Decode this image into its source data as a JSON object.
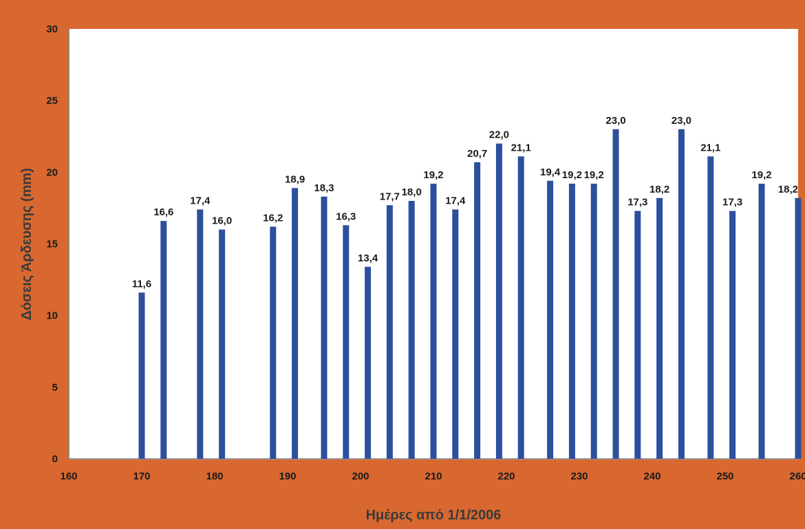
{
  "chart_data": {
    "type": "bar",
    "title": "",
    "xlabel": "Ημέρες από 1/1/2006",
    "ylabel": "Δόσεις Άρδευσης (mm)",
    "xlim": [
      160,
      260
    ],
    "ylim": [
      0,
      30
    ],
    "x_ticks": [
      "160",
      "170",
      "180",
      "190",
      "200",
      "210",
      "220",
      "230",
      "240",
      "250",
      "260"
    ],
    "y_ticks": [
      "0",
      "5",
      "10",
      "15",
      "20",
      "25",
      "30"
    ],
    "grid": false,
    "legend": "none",
    "bar_color": "#2c4f9e",
    "points": [
      {
        "x": 170,
        "y": 11.6,
        "label": "11,6"
      },
      {
        "x": 173,
        "y": 16.6,
        "label": "16,6"
      },
      {
        "x": 178,
        "y": 17.4,
        "label": "17,4"
      },
      {
        "x": 181,
        "y": 16.0,
        "label": "16,0"
      },
      {
        "x": 188,
        "y": 16.2,
        "label": "16,2"
      },
      {
        "x": 191,
        "y": 18.9,
        "label": "18,9"
      },
      {
        "x": 195,
        "y": 18.3,
        "label": "18,3"
      },
      {
        "x": 198,
        "y": 16.3,
        "label": "16,3"
      },
      {
        "x": 201,
        "y": 13.4,
        "label": "13,4"
      },
      {
        "x": 204,
        "y": 17.7,
        "label": "17,7"
      },
      {
        "x": 207,
        "y": 18.0,
        "label": "18,0"
      },
      {
        "x": 210,
        "y": 19.2,
        "label": "19,2"
      },
      {
        "x": 213,
        "y": 17.4,
        "label": "17,4"
      },
      {
        "x": 216,
        "y": 20.7,
        "label": "20,7"
      },
      {
        "x": 219,
        "y": 22.0,
        "label": "22,0"
      },
      {
        "x": 222,
        "y": 21.1,
        "label": "21,1"
      },
      {
        "x": 226,
        "y": 19.4,
        "label": "19,4"
      },
      {
        "x": 229,
        "y": 19.2,
        "label": "19,2"
      },
      {
        "x": 232,
        "y": 19.2,
        "label": "19,2"
      },
      {
        "x": 235,
        "y": 23.0,
        "label": "23,0"
      },
      {
        "x": 238,
        "y": 17.3,
        "label": "17,3"
      },
      {
        "x": 241,
        "y": 18.2,
        "label": "18,2"
      },
      {
        "x": 244,
        "y": 23.0,
        "label": "23,0"
      },
      {
        "x": 248,
        "y": 21.1,
        "label": "21,1"
      },
      {
        "x": 251,
        "y": 17.3,
        "label": "17,3"
      },
      {
        "x": 255,
        "y": 19.2,
        "label": "19,2"
      },
      {
        "x": 260,
        "y": 18.2,
        "label": "18,2"
      }
    ]
  }
}
